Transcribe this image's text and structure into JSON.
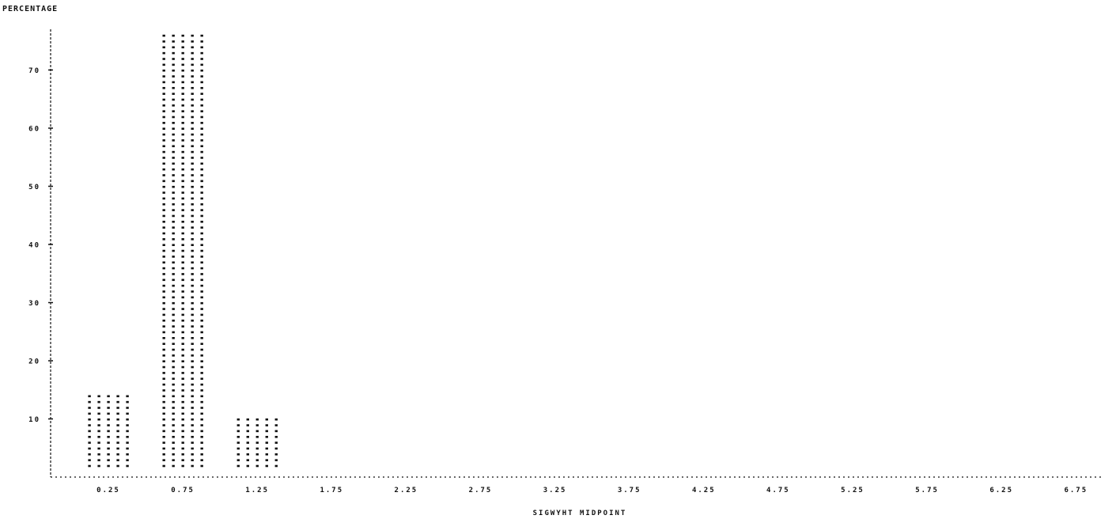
{
  "chart_data": {
    "type": "bar",
    "ylabel": "PERCENTAGE",
    "xlabel": "SIGWYHT MIDPOINT",
    "categories": [
      "0.25",
      "0.75",
      "1.25",
      "1.75",
      "2.25",
      "2.75",
      "3.25",
      "3.75",
      "4.25",
      "4.75",
      "5.25",
      "5.75",
      "6.25",
      "6.75"
    ],
    "values": [
      14,
      76,
      10,
      0,
      0,
      0,
      0,
      0,
      0,
      0,
      0,
      0,
      0,
      0
    ],
    "yticks": [
      "10",
      "20",
      "30",
      "40",
      "50",
      "60",
      "70"
    ],
    "ylim": [
      0,
      77
    ],
    "grid": false,
    "legend": "none",
    "bar_symbol": "*",
    "colors": {
      "ink": "#111111",
      "background": "#ffffff"
    }
  }
}
